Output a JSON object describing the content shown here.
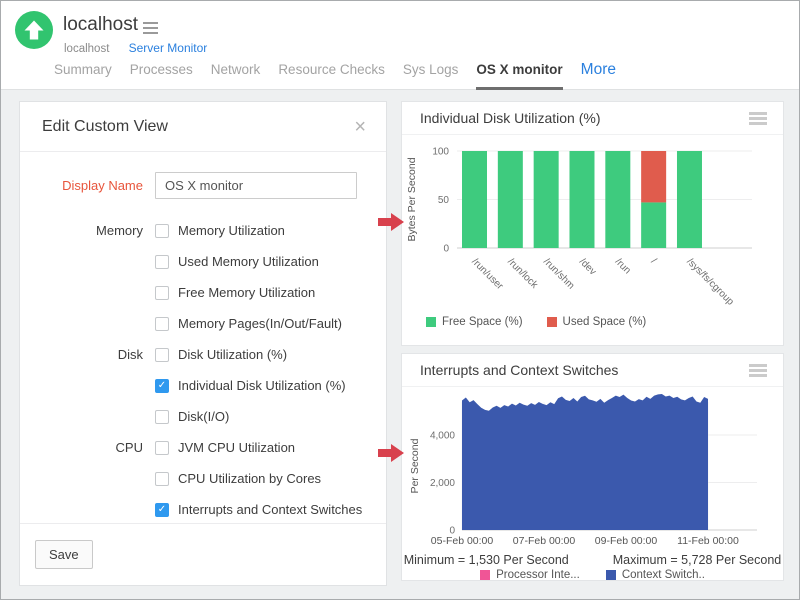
{
  "header": {
    "monitor_name": "localhost",
    "breadcrumb": {
      "host": "localhost",
      "monitor_type_link": "Server Monitor"
    },
    "tabs": [
      {
        "label": "Summary"
      },
      {
        "label": "Processes"
      },
      {
        "label": "Network"
      },
      {
        "label": "Resource Checks"
      },
      {
        "label": "Sys Logs"
      },
      {
        "label": "OS X monitor",
        "active": true
      },
      {
        "label": "More",
        "style": "link"
      }
    ]
  },
  "edit_panel": {
    "title": "Edit Custom View",
    "display_name_label": "Display Name",
    "display_name_value": "OS X monitor",
    "groups": [
      {
        "category": "Memory",
        "options": [
          {
            "label": "Memory Utilization",
            "checked": false
          },
          {
            "label": "Used Memory Utilization",
            "checked": false
          },
          {
            "label": "Free Memory Utilization",
            "checked": false
          },
          {
            "label": "Memory Pages(In/Out/Fault)",
            "checked": false
          }
        ]
      },
      {
        "category": "Disk",
        "options": [
          {
            "label": "Disk Utilization (%)",
            "checked": false
          },
          {
            "label": "Individual Disk Utilization (%)",
            "checked": true
          },
          {
            "label": "Disk(I/O)",
            "checked": false
          }
        ]
      },
      {
        "category": "CPU",
        "options": [
          {
            "label": "JVM CPU Utilization",
            "checked": false
          },
          {
            "label": "CPU Utilization by Cores",
            "checked": false
          },
          {
            "label": "Interrupts and Context Switches",
            "checked": true
          }
        ]
      }
    ],
    "save_label": "Save"
  },
  "chart_data": [
    {
      "type": "bar",
      "stacked": true,
      "title": "Individual Disk Utilization (%)",
      "categories": [
        "/run/user",
        "/run/lock",
        "/run/shm",
        "/dev",
        "/run",
        "/",
        "/sys/fs/cgroup"
      ],
      "series": [
        {
          "name": "Free Space (%)",
          "color": "#3ecb7e",
          "values": [
            100,
            100,
            100,
            100,
            100,
            47,
            100
          ]
        },
        {
          "name": "Used Space (%)",
          "color": "#e05c4d",
          "values": [
            0,
            0,
            0,
            0,
            0,
            53,
            0
          ]
        }
      ],
      "ylabel": "Bytes Per Second",
      "yticks": [
        0,
        50,
        100
      ],
      "ytick_labels": [
        "0",
        "50",
        "100"
      ],
      "ylim": [
        0,
        100
      ],
      "grid": true,
      "legend_position": "bottom-left"
    },
    {
      "type": "area",
      "title": "Interrupts and Context Switches",
      "ylabel": "Per Second",
      "yticks": [
        0,
        2000,
        4000
      ],
      "ytick_labels": [
        "0",
        "2,000",
        "4,000"
      ],
      "ylim": [
        0,
        6000
      ],
      "xtick_labels": [
        "05-Feb 00:00",
        "07-Feb 00:00",
        "09-Feb 00:00",
        "11-Feb 00:00"
      ],
      "x_range": [
        "05-Feb 00:00",
        "11-Feb 00:00"
      ],
      "series": [
        {
          "name": "Processor Inte...",
          "color": "#f05596",
          "values": []
        },
        {
          "name": "Context Switch..",
          "color": "#3b59ad",
          "values": [
            5450,
            5580,
            5380,
            5470,
            5300,
            5150,
            5060,
            5020,
            5160,
            5230,
            5140,
            5260,
            5200,
            5320,
            5240,
            5360,
            5280,
            5230,
            5340,
            5270,
            5390,
            5310,
            5260,
            5380,
            5300,
            5550,
            5620,
            5480,
            5430,
            5560,
            5410,
            5600,
            5650,
            5500,
            5460,
            5400,
            5520,
            5360,
            5470,
            5560,
            5660,
            5600,
            5700,
            5560,
            5450,
            5410,
            5510,
            5460,
            5610,
            5520,
            5660,
            5710,
            5728,
            5620,
            5660,
            5560,
            5610,
            5500,
            5460,
            5560,
            5620,
            5410,
            5360,
            5600,
            5520
          ]
        }
      ],
      "stats": {
        "minimum": "Minimum = 1,530 Per Second",
        "maximum": "Maximum = 5,728 Per Second"
      },
      "grid": true,
      "legend_position": "bottom-center"
    }
  ],
  "icons": {
    "status": "up-arrow-circle-icon",
    "title_menu": "hamburger-icon",
    "close": "close-x-icon",
    "card_menu": "hamburger-icon",
    "callout": "red-right-arrow-icon",
    "checkbox_checked_glyph": "checkmark"
  },
  "ui_colors": {
    "status_icon_green": "#31c46f",
    "link_blue": "#2b80de",
    "active_tab_underline": "#6e6e6e",
    "display_name_label_red": "#e8553c",
    "checkbox_checked_blue": "#2f99ef",
    "callout_arrow_red": "#d8414d",
    "page_background": "#eef0f1"
  }
}
